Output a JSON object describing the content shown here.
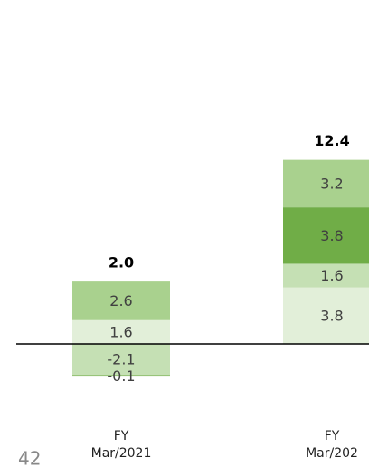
{
  "chart_data": {
    "type": "stacked_bar",
    "categories": [
      [
        "FY",
        "Mar/2021"
      ],
      [
        "FY",
        "Mar/202"
      ]
    ],
    "series": [
      {
        "color": "#e2efd9",
        "values": [
          1.6,
          3.8
        ]
      },
      {
        "color": "#c5e0b4",
        "values": [
          -2.1,
          1.6
        ]
      },
      {
        "color": "#70ad47",
        "values": [
          -0.1,
          3.8
        ]
      },
      {
        "color": "#a9d18e",
        "values": [
          2.6,
          3.2
        ]
      }
    ],
    "totals": [
      2.0,
      12.4
    ],
    "total_labels": [
      "2.0",
      "12.4"
    ],
    "page_number": 42
  }
}
